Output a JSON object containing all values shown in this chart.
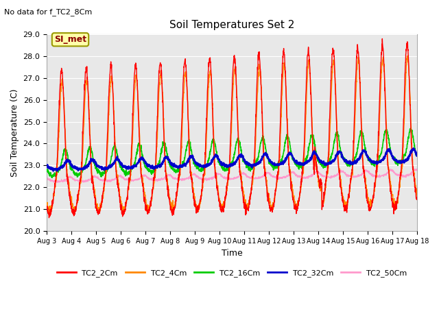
{
  "title": "Soil Temperatures Set 2",
  "subtitle": "No data for f_TC2_8Cm",
  "ylabel": "Soil Temperature (C)",
  "xlabel": "Time",
  "annotation_label": "SI_met",
  "ylim": [
    20.0,
    29.0
  ],
  "yticks": [
    20.0,
    21.0,
    22.0,
    23.0,
    24.0,
    25.0,
    26.0,
    27.0,
    28.0,
    29.0
  ],
  "xtick_labels": [
    "Aug 3",
    "Aug 4",
    "Aug 5",
    "Aug 6",
    "Aug 7",
    "Aug 8",
    "Aug 9",
    "Aug 10",
    "Aug 11",
    "Aug 12",
    "Aug 13",
    "Aug 14",
    "Aug 15",
    "Aug 16",
    "Aug 17",
    "Aug 18"
  ],
  "series_colors": {
    "TC2_2Cm": "#ff0000",
    "TC2_4Cm": "#ff8800",
    "TC2_16Cm": "#00cc00",
    "TC2_32Cm": "#0000cc",
    "TC2_50Cm": "#ff99cc"
  },
  "series_linewidths": {
    "TC2_2Cm": 1.0,
    "TC2_4Cm": 1.0,
    "TC2_16Cm": 1.2,
    "TC2_32Cm": 1.8,
    "TC2_50Cm": 1.0
  },
  "background_color": "#e8e8e8",
  "plot_bg_color": "#e8e8e8",
  "figure_bg_color": "#ffffff",
  "grid_color": "#ffffff",
  "n_days": 15,
  "pts_per_day": 144,
  "base_2cm": 22.3,
  "base_4cm": 22.3,
  "base_16cm": 22.8,
  "base_32cm": 22.9,
  "base_50cm": 22.3,
  "trend_2cm": 0.5,
  "trend_4cm": 0.5,
  "trend_16cm": 0.7,
  "trend_32cm": 0.4,
  "trend_50cm": 0.3
}
